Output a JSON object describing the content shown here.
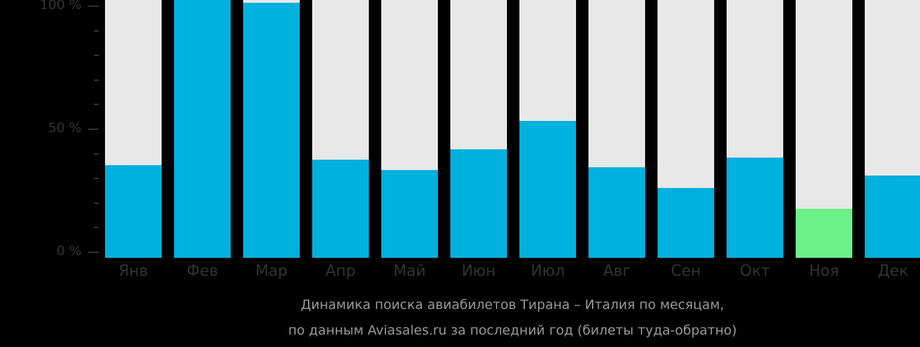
{
  "chart_data": {
    "type": "bar",
    "title": "Динамика поиска авиабилетов Тирана – Италия по месяцам, по данным Aviasales.ru за последний год (билеты туда-обратно)",
    "categories": [
      "Янв",
      "Фев",
      "Мар",
      "Апр",
      "Май",
      "Июн",
      "Июл",
      "Авг",
      "Сен",
      "Окт",
      "Ноя",
      "Дек"
    ],
    "values": [
      36,
      100,
      99,
      38,
      34,
      42,
      53,
      35,
      27,
      39,
      19,
      32
    ],
    "highlight_index": 10,
    "xlabel": "",
    "ylabel": "",
    "ylim": [
      0,
      100
    ],
    "yticks": [
      "0 %",
      "50 %",
      "100 %"
    ],
    "colors": {
      "bar": "#00b0dd",
      "highlight": "#6cf088",
      "background_bar": "#e8e8e8"
    },
    "grid": false
  },
  "caption": {
    "line1": "Динамика поиска авиабилетов Тирана – Италия по месяцам,",
    "line2": "по данным Aviasales.ru за последний год (билеты туда-обратно)"
  }
}
